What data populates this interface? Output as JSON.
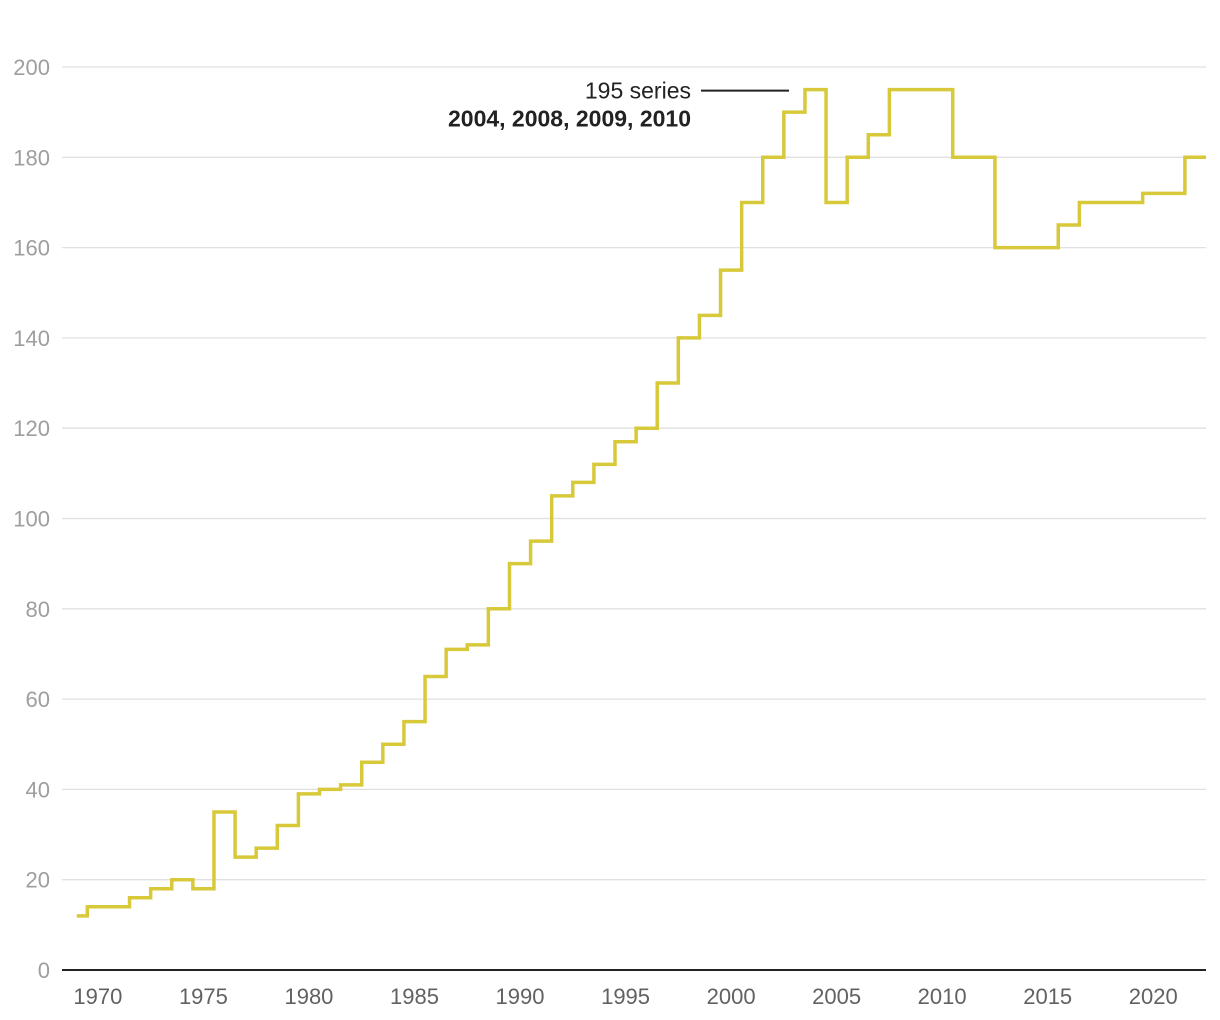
{
  "colors": {
    "series": "#d8c93a",
    "grid": "#e0e0e0",
    "axis": "#222222",
    "annotation_line": "#222222"
  },
  "annotation": {
    "line1": "195 series",
    "line2": "2004, 2008, 2009, 2010"
  },
  "chart_data": {
    "type": "line",
    "step": true,
    "title": "",
    "xlabel": "",
    "ylabel": "",
    "xlim": [
      1968.3,
      2022.5
    ],
    "ylim": [
      0,
      200
    ],
    "yticks": [
      0,
      20,
      40,
      60,
      80,
      100,
      120,
      140,
      160,
      180,
      200
    ],
    "xticks": [
      1970,
      1975,
      1980,
      1985,
      1990,
      1995,
      2000,
      2005,
      2010,
      2015,
      2020
    ],
    "grid": true,
    "legend": "none",
    "series": [
      {
        "x": [
          1969,
          1970,
          1971,
          1972,
          1973,
          1974,
          1975,
          1976,
          1977,
          1978,
          1979,
          1980,
          1981,
          1982,
          1983,
          1984,
          1985,
          1986,
          1987,
          1988,
          1989,
          1990,
          1991,
          1992,
          1993,
          1994,
          1995,
          1996,
          1997,
          1998,
          1999,
          2000,
          2001,
          2002,
          2003,
          2004,
          2005,
          2006,
          2007,
          2008,
          2009,
          2010,
          2011,
          2012,
          2013,
          2014,
          2015,
          2016,
          2017,
          2018,
          2019,
          2020,
          2021,
          2022
        ],
        "y": [
          12,
          14,
          14,
          16,
          18,
          20,
          18,
          35,
          25,
          27,
          32,
          39,
          40,
          41,
          46,
          50,
          55,
          65,
          71,
          72,
          80,
          90,
          95,
          105,
          108,
          112,
          117,
          120,
          130,
          140,
          145,
          155,
          170,
          180,
          190,
          195,
          170,
          180,
          185,
          195,
          195,
          195,
          180,
          180,
          160,
          160,
          160,
          165,
          170,
          170,
          170,
          172,
          172,
          180
        ]
      }
    ]
  }
}
